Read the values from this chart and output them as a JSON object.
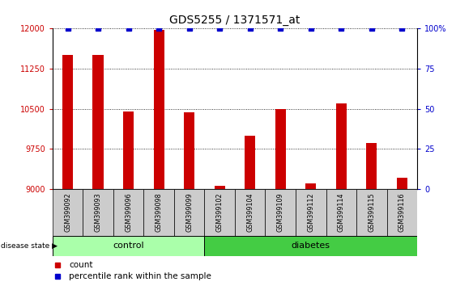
{
  "title": "GDS5255 / 1371571_at",
  "samples": [
    "GSM399092",
    "GSM399093",
    "GSM399096",
    "GSM399098",
    "GSM399099",
    "GSM399102",
    "GSM399104",
    "GSM399109",
    "GSM399112",
    "GSM399114",
    "GSM399115",
    "GSM399116"
  ],
  "counts": [
    11500,
    11500,
    10450,
    11980,
    10430,
    9060,
    10000,
    10500,
    9100,
    10600,
    9850,
    9200
  ],
  "percentile_ranks": [
    100,
    100,
    100,
    100,
    100,
    100,
    100,
    100,
    100,
    100,
    100,
    100
  ],
  "ylim_left": [
    9000,
    12000
  ],
  "ylim_right": [
    0,
    100
  ],
  "yticks_left": [
    9000,
    9750,
    10500,
    11250,
    12000
  ],
  "yticks_right": [
    0,
    25,
    50,
    75,
    100
  ],
  "bar_color": "#cc0000",
  "percentile_color": "#0000cc",
  "grid_color": "#000000",
  "n_control": 5,
  "n_diabetes": 7,
  "control_label": "control",
  "diabetes_label": "diabetes",
  "disease_state_label": "disease state",
  "legend_count_label": "count",
  "legend_percentile_label": "percentile rank within the sample",
  "bar_width": 0.35,
  "tick_bg_color": "#cccccc",
  "control_bg": "#aaffaa",
  "diabetes_bg": "#44cc44",
  "title_fontsize": 10,
  "tick_fontsize": 7,
  "label_fontsize": 7.5
}
